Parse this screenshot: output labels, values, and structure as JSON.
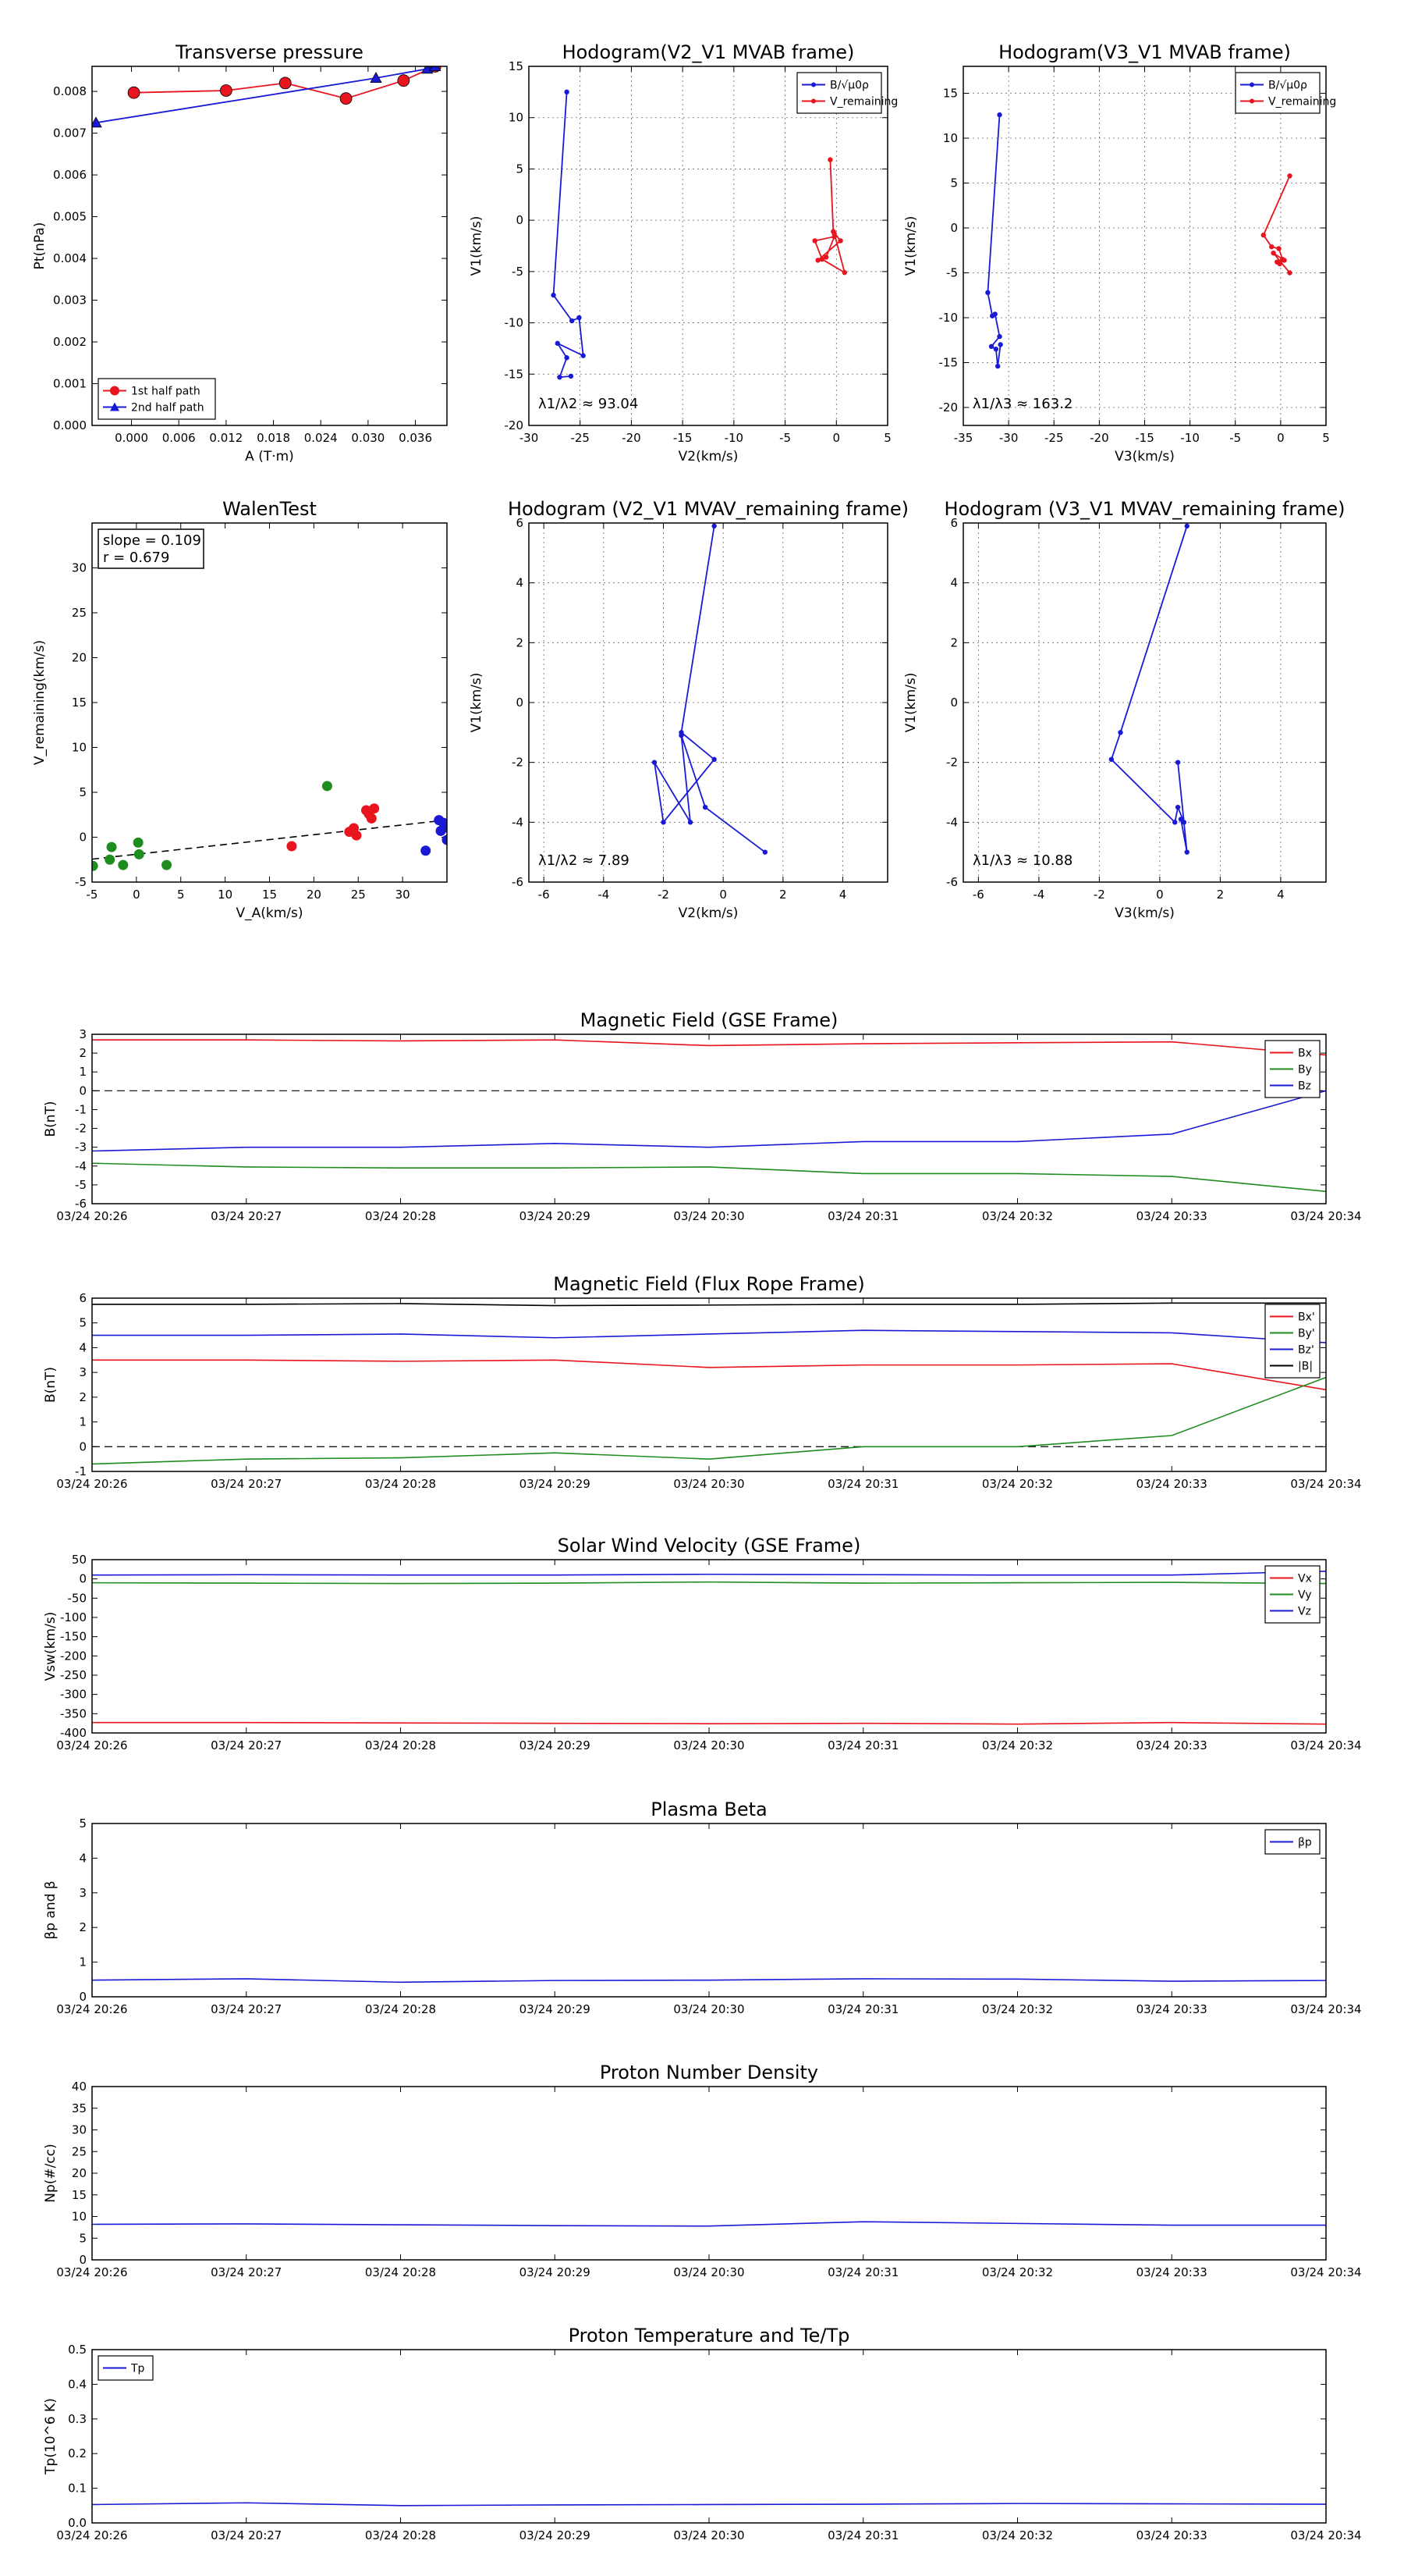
{
  "chart_data": [
    {
      "id": "p1",
      "type": "line",
      "title": "Transverse pressure",
      "xlabel": "A (T·m)",
      "ylabel": "Pt(nPa)",
      "xlim": [
        -0.005,
        0.04
      ],
      "ylim": [
        0,
        0.0086
      ],
      "xticks": [
        0.0,
        0.006,
        0.012,
        0.018,
        0.024,
        0.03,
        0.036
      ],
      "xtick_labels": [
        "0.000",
        "0.006",
        "0.012",
        "0.018",
        "0.024",
        "0.030",
        "0.036"
      ],
      "yticks": [
        0,
        0.001,
        0.002,
        0.003,
        0.004,
        0.005,
        0.006,
        0.007,
        0.008
      ],
      "ytick_labels": [
        "0.000",
        "0.001",
        "0.002",
        "0.003",
        "0.004",
        "0.005",
        "0.006",
        "0.007",
        "0.008"
      ],
      "grid": false,
      "legend": "lower-left",
      "series": [
        {
          "name": "1st half path",
          "color": "#e8141e",
          "marker": "circle",
          "x": [
            0.0003,
            0.012,
            0.0195,
            0.0272,
            0.0345,
            0.0385
          ],
          "y": [
            0.00797,
            0.00802,
            0.0082,
            0.00783,
            0.00826,
            0.0086
          ]
        },
        {
          "name": "2nd half path",
          "color": "#1a1ad6",
          "marker": "triangle",
          "x": [
            -0.0045,
            0.031,
            0.0375,
            0.0385
          ],
          "y": [
            0.00725,
            0.00832,
            0.00854,
            0.0086
          ]
        }
      ]
    },
    {
      "id": "p2",
      "type": "line",
      "title": "Hodogram(V2_V1 MVAB frame)",
      "xlabel": "V2(km/s)",
      "ylabel": "V1(km/s)",
      "xlim": [
        -30,
        5
      ],
      "ylim": [
        -20,
        15
      ],
      "xticks": [
        -30,
        -25,
        -20,
        -15,
        -10,
        -5,
        0,
        5
      ],
      "yticks": [
        -20,
        -15,
        -10,
        -5,
        0,
        5,
        10,
        15
      ],
      "grid": true,
      "legend": "top-right",
      "annotation": "λ1/λ2 ≈ 93.04",
      "series": [
        {
          "name": "B/√μ0ρ",
          "color": "#1a1ad6",
          "x": [
            -26.3,
            -27.6,
            -25.8,
            -25.1,
            -24.7,
            -27.2,
            -26.3,
            -27.0,
            -25.9
          ],
          "y": [
            12.5,
            -7.3,
            -9.8,
            -9.5,
            -13.2,
            -12.0,
            -13.4,
            -15.3,
            -15.2
          ]
        },
        {
          "name": "V_remaining",
          "color": "#e8141e",
          "x": [
            -0.6,
            -0.3,
            0.4,
            -1.8,
            -1.0,
            -0.2,
            -2.1,
            -1.4,
            0.8,
            -0.2
          ],
          "y": [
            5.9,
            -1.1,
            -2.0,
            -3.9,
            -3.6,
            -1.6,
            -2.0,
            -3.8,
            -5.1,
            -1.3
          ]
        }
      ]
    },
    {
      "id": "p3",
      "type": "line",
      "title": "Hodogram(V3_V1 MVAB frame)",
      "xlabel": "V3(km/s)",
      "ylabel": "V1(km/s)",
      "xlim": [
        -35,
        5
      ],
      "ylim": [
        -22,
        18
      ],
      "xticks": [
        -35,
        -30,
        -25,
        -20,
        -15,
        -10,
        -5,
        0,
        5
      ],
      "yticks": [
        -20,
        -15,
        -10,
        -5,
        0,
        5,
        10,
        15
      ],
      "grid": true,
      "legend": "top-right",
      "annotation": "λ1/λ3 ≈ 163.2",
      "series": [
        {
          "name": "B/√μ0ρ",
          "color": "#1a1ad6",
          "x": [
            -31.0,
            -32.3,
            -31.8,
            -31.5,
            -31.0,
            -31.9,
            -31.4,
            -31.2,
            -30.9
          ],
          "y": [
            12.6,
            -7.2,
            -9.8,
            -9.6,
            -12.1,
            -13.2,
            -13.5,
            -15.4,
            -13.0
          ]
        },
        {
          "name": "V_remaining",
          "color": "#e8141e",
          "x": [
            1.0,
            -1.9,
            -1.0,
            -0.2,
            0.2,
            -0.4,
            -0.1,
            0.4,
            -0.8,
            1.0
          ],
          "y": [
            5.8,
            -0.8,
            -2.1,
            -2.3,
            -3.5,
            -3.8,
            -4.0,
            -3.6,
            -2.8,
            -5.0
          ]
        }
      ]
    },
    {
      "id": "p4",
      "type": "scatter",
      "title": "WalenTest",
      "xlabel": "V_A(km/s)",
      "ylabel": "V_remaining(km/s)",
      "xlim": [
        -5,
        35
      ],
      "ylim": [
        -5,
        35
      ],
      "xticks": [
        -5,
        0,
        5,
        10,
        15,
        20,
        25,
        30
      ],
      "yticks": [
        -5,
        0,
        5,
        10,
        15,
        20,
        25,
        30
      ],
      "grid": false,
      "annotation": [
        "slope = 0.109",
        "r = 0.679"
      ],
      "fit": {
        "slope": 0.109,
        "intercept": -1.9
      },
      "series": [
        {
          "color": "#1e8c1e",
          "x": [
            -4.9,
            -3.0,
            -2.8,
            -1.5,
            0.2,
            0.3,
            3.4,
            21.5
          ],
          "y": [
            -3.2,
            -2.5,
            -1.1,
            -3.1,
            -0.6,
            -1.9,
            -3.1,
            5.7
          ]
        },
        {
          "color": "#e8141e",
          "x": [
            17.5,
            24.0,
            24.5,
            24.8,
            25.9,
            26.2,
            26.5,
            26.8
          ],
          "y": [
            -1.0,
            0.6,
            1.0,
            0.2,
            3.0,
            2.6,
            2.1,
            3.2
          ]
        },
        {
          "color": "#1a1ad6",
          "x": [
            32.6,
            34.1,
            34.3,
            34.6,
            34.9,
            35.0
          ],
          "y": [
            -1.5,
            1.9,
            0.7,
            1.6,
            1.1,
            -0.3
          ]
        }
      ]
    },
    {
      "id": "p5",
      "type": "line",
      "title": "Hodogram (V2_V1 MVAV_remaining frame)",
      "xlabel": "V2(km/s)",
      "ylabel": "V1(km/s)",
      "xlim": [
        -6.5,
        5.5
      ],
      "ylim": [
        -6,
        6
      ],
      "xticks": [
        -6,
        -4,
        -2,
        0,
        2,
        4
      ],
      "yticks": [
        -6,
        -4,
        -2,
        0,
        2,
        4,
        6
      ],
      "grid": true,
      "annotation": "λ1/λ2 ≈ 7.89",
      "series": [
        {
          "color": "#1a1ad6",
          "x": [
            -0.3,
            -1.4,
            -0.3,
            -2.0,
            -2.3,
            -1.1,
            -1.4,
            -0.6,
            1.4
          ],
          "y": [
            5.9,
            -1.0,
            -1.9,
            -4.0,
            -2.0,
            -4.0,
            -1.1,
            -3.5,
            -5.0
          ]
        }
      ]
    },
    {
      "id": "p6",
      "type": "line",
      "title": "Hodogram (V3_V1 MVAV_remaining frame)",
      "xlabel": "V3(km/s)",
      "ylabel": "V1(km/s)",
      "xlim": [
        -6.5,
        5.5
      ],
      "ylim": [
        -6,
        6
      ],
      "xticks": [
        -6,
        -4,
        -2,
        0,
        2,
        4
      ],
      "yticks": [
        -6,
        -4,
        -2,
        0,
        2,
        4,
        6
      ],
      "grid": true,
      "annotation": "λ1/λ3 ≈ 10.88",
      "series": [
        {
          "color": "#1a1ad6",
          "x": [
            0.9,
            -1.3,
            -1.6,
            0.5,
            0.6,
            0.8,
            0.7,
            0.9,
            0.6
          ],
          "y": [
            5.9,
            -1.0,
            -1.9,
            -4.0,
            -3.5,
            -4.0,
            -3.9,
            -5.0,
            -2.0
          ]
        }
      ]
    },
    {
      "id": "t1",
      "type": "line",
      "title": "Magnetic Field (GSE Frame)",
      "ylabel": "B(nT)",
      "ylim": [
        -6,
        3
      ],
      "yticks": [
        -6,
        -5,
        -4,
        -3,
        -2,
        -1,
        0,
        1,
        2,
        3
      ],
      "x": [
        0,
        1,
        2,
        3,
        4,
        5,
        6,
        7,
        8
      ],
      "xtick_labels": [
        "03/24 20:26",
        "03/24 20:27",
        "03/24 20:28",
        "03/24 20:29",
        "03/24 20:30",
        "03/24 20:31",
        "03/24 20:32",
        "03/24 20:33",
        "03/24 20:34"
      ],
      "zero_line": true,
      "legend": "top-right",
      "series": [
        {
          "name": "Bx",
          "color": "#e8141e",
          "values": [
            2.7,
            2.7,
            2.65,
            2.7,
            2.4,
            2.5,
            2.55,
            2.6,
            1.9
          ]
        },
        {
          "name": "By",
          "color": "#1e8c1e",
          "values": [
            -3.85,
            -4.05,
            -4.1,
            -4.1,
            -4.05,
            -4.4,
            -4.4,
            -4.55,
            -5.35
          ]
        },
        {
          "name": "Bz",
          "color": "#1a1ad6",
          "values": [
            -3.2,
            -3.0,
            -3.0,
            -2.8,
            -3.0,
            -2.7,
            -2.7,
            -2.3,
            0.0
          ]
        }
      ]
    },
    {
      "id": "t2",
      "type": "line",
      "title": "Magnetic Field (Flux Rope Frame)",
      "ylabel": "B(nT)",
      "ylim": [
        -1,
        6
      ],
      "yticks": [
        -1,
        0,
        1,
        2,
        3,
        4,
        5,
        6
      ],
      "x": [
        0,
        1,
        2,
        3,
        4,
        5,
        6,
        7,
        8
      ],
      "xtick_labels": [
        "03/24 20:26",
        "03/24 20:27",
        "03/24 20:28",
        "03/24 20:29",
        "03/24 20:30",
        "03/24 20:31",
        "03/24 20:32",
        "03/24 20:33",
        "03/24 20:34"
      ],
      "zero_line": true,
      "legend": "top-right",
      "series": [
        {
          "name": "Bx'",
          "color": "#e8141e",
          "values": [
            3.5,
            3.5,
            3.45,
            3.5,
            3.2,
            3.3,
            3.3,
            3.35,
            2.3
          ]
        },
        {
          "name": "By'",
          "color": "#1e8c1e",
          "values": [
            -0.7,
            -0.5,
            -0.45,
            -0.25,
            -0.5,
            0.0,
            0.0,
            0.45,
            2.8
          ]
        },
        {
          "name": "Bz'",
          "color": "#1a1ad6",
          "values": [
            4.5,
            4.5,
            4.55,
            4.4,
            4.55,
            4.7,
            4.65,
            4.6,
            4.2
          ]
        },
        {
          "name": "|B|",
          "color": "#000000",
          "values": [
            5.75,
            5.75,
            5.78,
            5.7,
            5.72,
            5.75,
            5.75,
            5.8,
            5.8
          ]
        }
      ]
    },
    {
      "id": "t3",
      "type": "line",
      "title": "Solar Wind Velocity (GSE Frame)",
      "ylabel": "Vsw(km/s)",
      "ylim": [
        -400,
        50
      ],
      "yticks": [
        -400,
        -350,
        -300,
        -250,
        -200,
        -150,
        -100,
        -50,
        0,
        50
      ],
      "x": [
        0,
        1,
        2,
        3,
        4,
        5,
        6,
        7,
        8
      ],
      "xtick_labels": [
        "03/24 20:26",
        "03/24 20:27",
        "03/24 20:28",
        "03/24 20:29",
        "03/24 20:30",
        "03/24 20:31",
        "03/24 20:32",
        "03/24 20:33",
        "03/24 20:34"
      ],
      "legend": "top-right",
      "series": [
        {
          "name": "Vx",
          "color": "#e8141e",
          "values": [
            -373,
            -373,
            -374,
            -375,
            -376,
            -375,
            -377,
            -373,
            -377
          ]
        },
        {
          "name": "Vy",
          "color": "#1e8c1e",
          "values": [
            -10,
            -11,
            -12,
            -11,
            -8,
            -11,
            -10,
            -9,
            -12
          ]
        },
        {
          "name": "Vz",
          "color": "#1a1ad6",
          "values": [
            10,
            11,
            10,
            10,
            12,
            11,
            10,
            10,
            20
          ]
        }
      ]
    },
    {
      "id": "t4",
      "type": "line",
      "title": "Plasma Beta",
      "ylabel": "βp and β",
      "ylim": [
        0,
        5
      ],
      "yticks": [
        0,
        1,
        2,
        3,
        4,
        5
      ],
      "x": [
        0,
        1,
        2,
        3,
        4,
        5,
        6,
        7,
        8
      ],
      "xtick_labels": [
        "03/24 20:26",
        "03/24 20:27",
        "03/24 20:28",
        "03/24 20:29",
        "03/24 20:30",
        "03/24 20:31",
        "03/24 20:32",
        "03/24 20:33",
        "03/24 20:34"
      ],
      "legend": "top-right",
      "series": [
        {
          "name": "βp",
          "color": "#1a1ad6",
          "values": [
            0.48,
            0.52,
            0.42,
            0.47,
            0.48,
            0.52,
            0.51,
            0.45,
            0.47
          ]
        }
      ]
    },
    {
      "id": "t5",
      "type": "line",
      "title": "Proton Number Density",
      "ylabel": "Np(#/cc)",
      "ylim": [
        0,
        40
      ],
      "yticks": [
        0,
        5,
        10,
        15,
        20,
        25,
        30,
        35,
        40
      ],
      "x": [
        0,
        1,
        2,
        3,
        4,
        5,
        6,
        7,
        8
      ],
      "xtick_labels": [
        "03/24 20:26",
        "03/24 20:27",
        "03/24 20:28",
        "03/24 20:29",
        "03/24 20:30",
        "03/24 20:31",
        "03/24 20:32",
        "03/24 20:33",
        "03/24 20:34"
      ],
      "series": [
        {
          "color": "#1a1ad6",
          "values": [
            8.2,
            8.3,
            8.1,
            7.9,
            7.8,
            8.8,
            8.4,
            8.0,
            8.0
          ]
        }
      ]
    },
    {
      "id": "t6",
      "type": "line",
      "title": "Proton Temperature and Te/Tp",
      "ylabel": "Tp(10^6 K)",
      "ylim": [
        0,
        0.5
      ],
      "yticks": [
        0,
        0.1,
        0.2,
        0.3,
        0.4,
        0.5
      ],
      "ytick_labels": [
        "0.0",
        "0.1",
        "0.2",
        "0.3",
        "0.4",
        "0.5"
      ],
      "x": [
        0,
        1,
        2,
        3,
        4,
        5,
        6,
        7,
        8
      ],
      "xtick_labels": [
        "03/24 20:26",
        "03/24 20:27",
        "03/24 20:28",
        "03/24 20:29",
        "03/24 20:30",
        "03/24 20:31",
        "03/24 20:32",
        "03/24 20:33",
        "03/24 20:34"
      ],
      "legend": "top-left",
      "series": [
        {
          "name": "Tp",
          "color": "#1a1ad6",
          "values": [
            0.053,
            0.058,
            0.05,
            0.052,
            0.053,
            0.054,
            0.056,
            0.055,
            0.054
          ]
        }
      ]
    }
  ]
}
